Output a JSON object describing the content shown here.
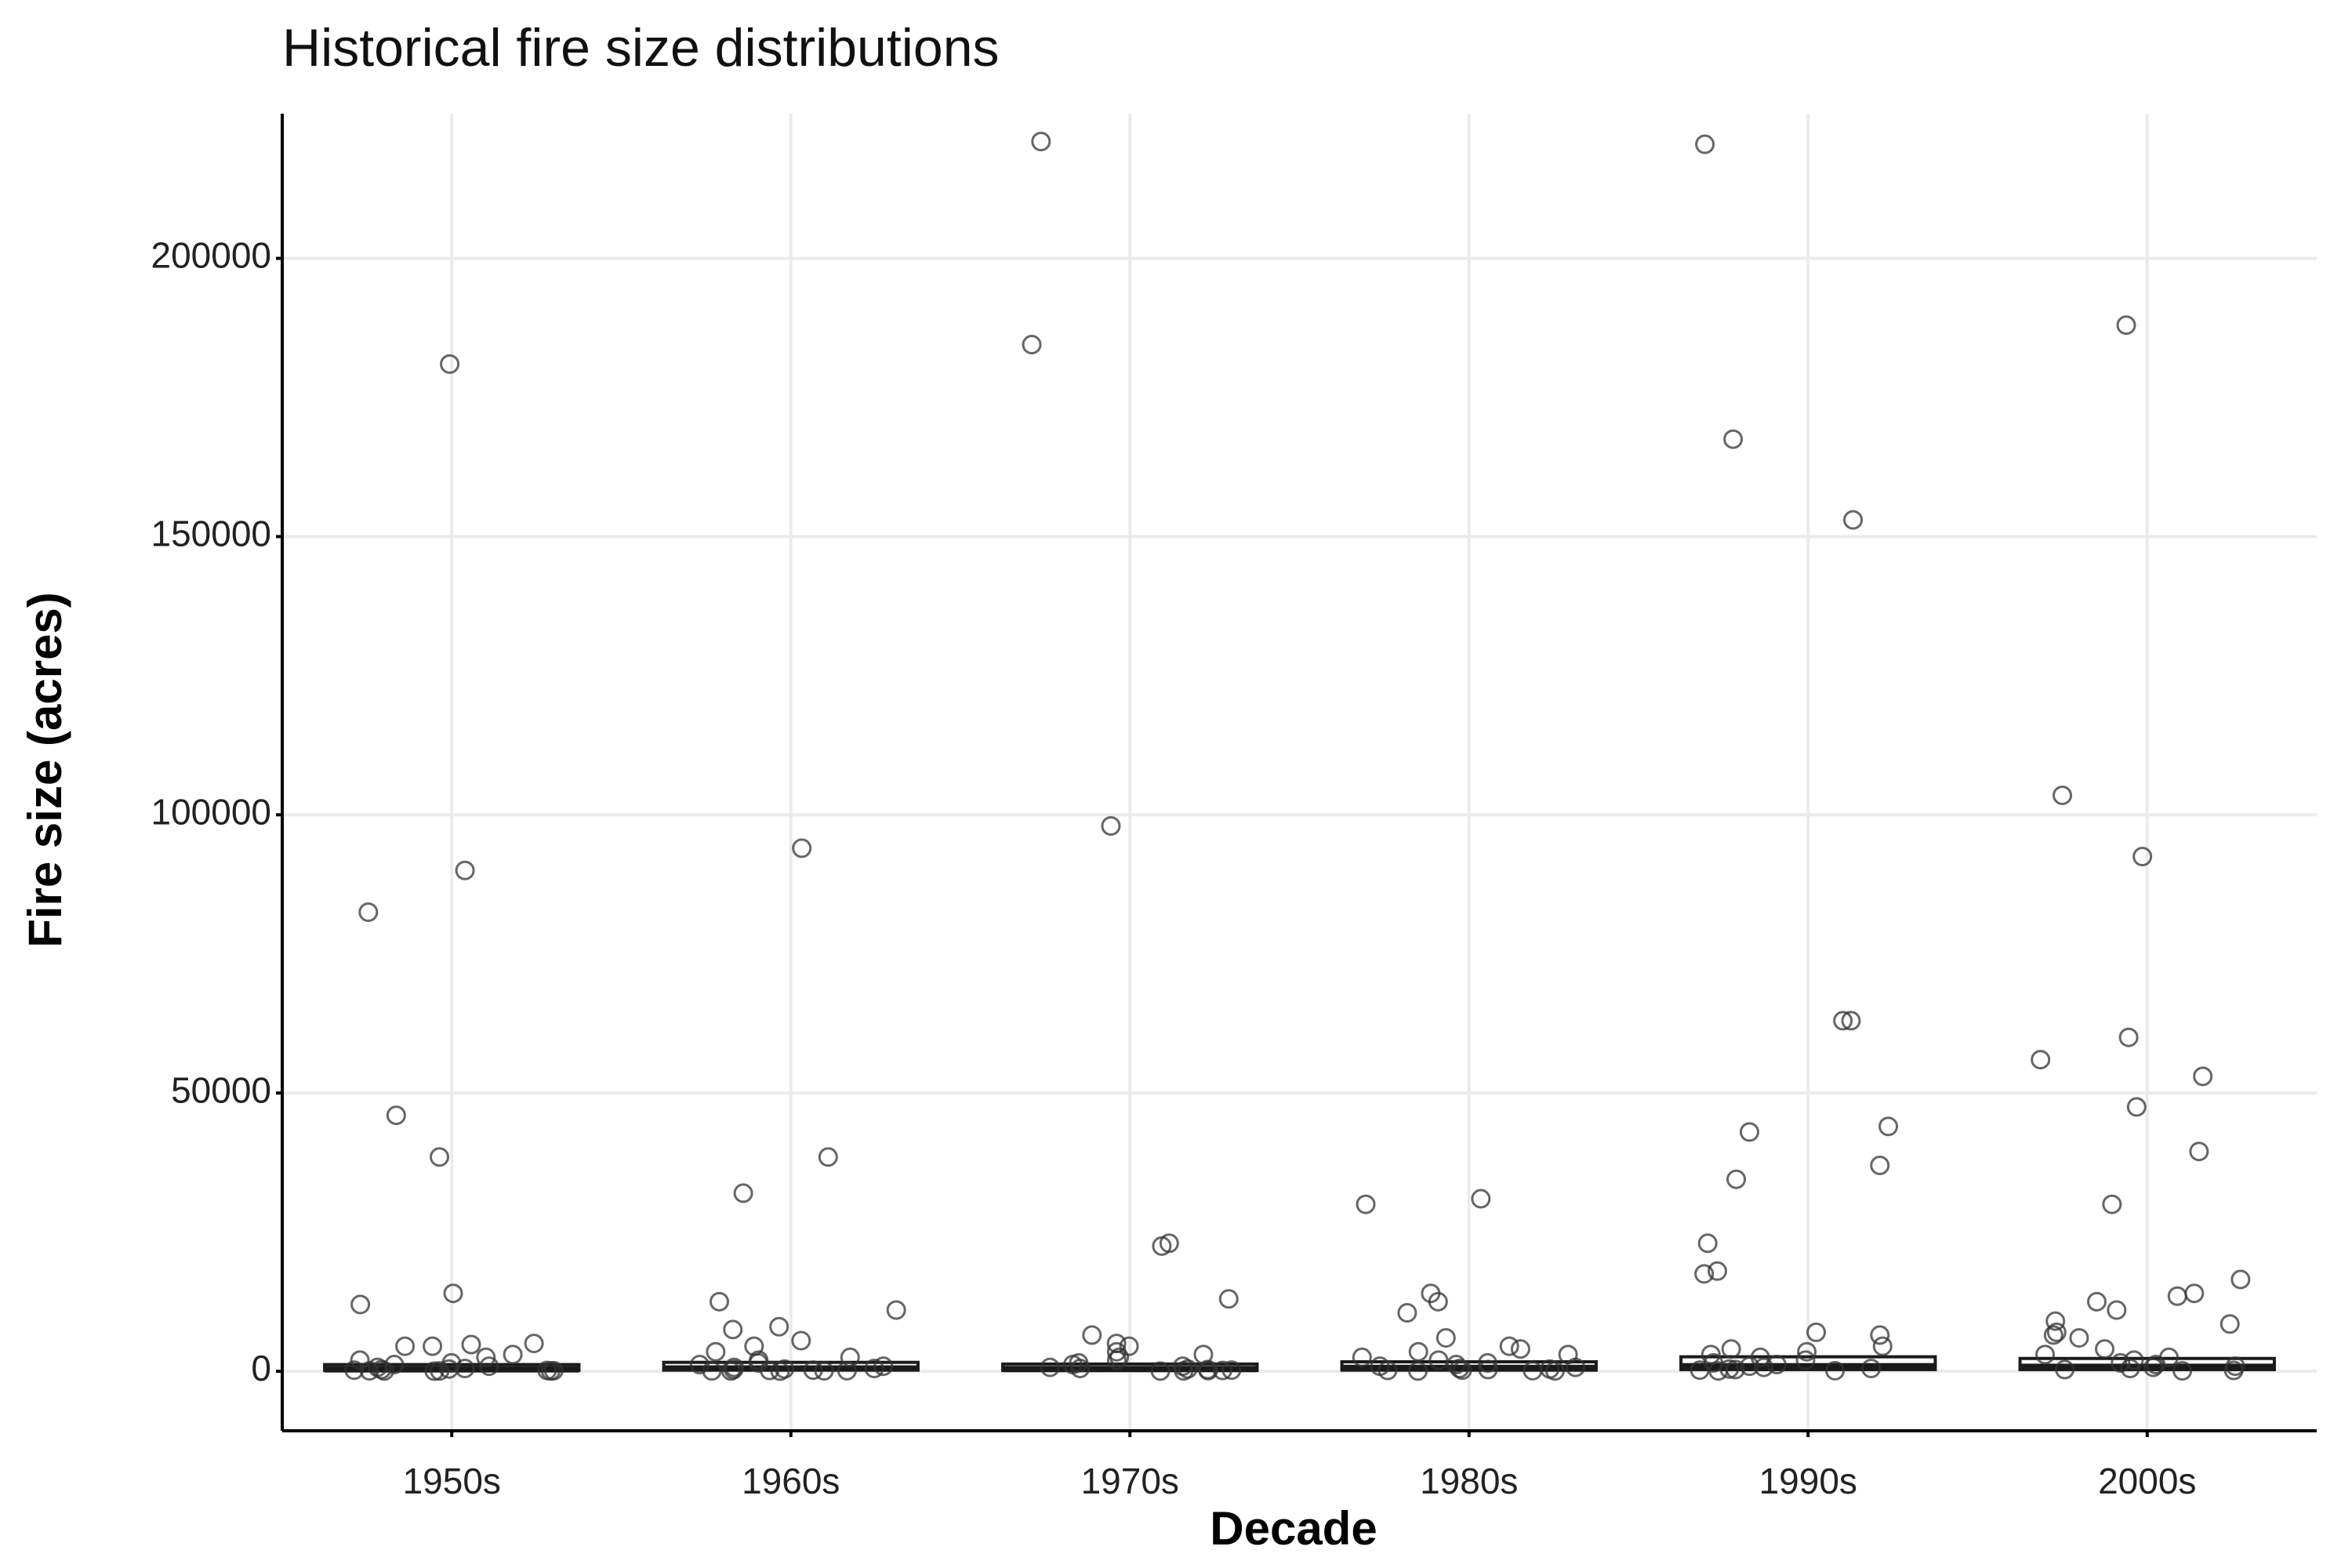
{
  "chart_data": {
    "type": "boxplot",
    "title": "Historical fire size distributions",
    "xlabel": "Decade",
    "ylabel": "Fire size (acres)",
    "ylim": [
      -10700,
      226000
    ],
    "yticks": [
      0,
      50000,
      100000,
      150000,
      200000
    ],
    "grid": true,
    "legend": "none",
    "colors": {
      "box_fill": "#ffffff",
      "box_stroke": "#1a1a1a",
      "point_stroke": "#333333",
      "grid": "#ebebeb"
    },
    "categories": [
      "1950s",
      "1960s",
      "1970s",
      "1980s",
      "1990s",
      "2000s"
    ],
    "boxes": [
      {
        "category": "1950s",
        "q1": 150,
        "median": 350,
        "q3": 1200
      },
      {
        "category": "1960s",
        "q1": 200,
        "median": 500,
        "q3": 1600
      },
      {
        "category": "1970s",
        "q1": 150,
        "median": 400,
        "q3": 1300
      },
      {
        "category": "1980s",
        "q1": 200,
        "median": 600,
        "q3": 1700
      },
      {
        "category": "1990s",
        "q1": 300,
        "median": 900,
        "q3": 2600
      },
      {
        "category": "2000s",
        "q1": 300,
        "median": 800,
        "q3": 2300
      }
    ],
    "points": [
      {
        "category": "1950s",
        "values": [
          181000,
          90000,
          82500,
          46000,
          38500,
          14000,
          12000,
          5000,
          4800,
          4500,
          4500,
          3000,
          2500,
          2000,
          1500,
          1200,
          900,
          700,
          500,
          400,
          300,
          200,
          150,
          100,
          80,
          60,
          40,
          30,
          20
        ]
      },
      {
        "category": "1960s",
        "values": [
          94000,
          38500,
          32000,
          12500,
          11000,
          8000,
          7500,
          5500,
          4500,
          3500,
          2500,
          2000,
          1500,
          1200,
          900,
          700,
          500,
          400,
          300,
          200,
          150,
          100,
          80,
          60,
          40,
          20
        ]
      },
      {
        "category": "1970s",
        "values": [
          221000,
          184500,
          98000,
          23000,
          22500,
          13000,
          6500,
          5000,
          4500,
          3500,
          3000,
          2500,
          2000,
          1500,
          1200,
          900,
          700,
          500,
          400,
          300,
          200,
          150,
          100,
          60,
          30
        ]
      },
      {
        "category": "1980s",
        "values": [
          31000,
          30000,
          14000,
          12500,
          10500,
          6000,
          4500,
          4000,
          3500,
          3000,
          2500,
          2000,
          1500,
          1200,
          900,
          700,
          500,
          400,
          300,
          200,
          150,
          100,
          60,
          30
        ]
      },
      {
        "category": "1990s",
        "values": [
          220500,
          167500,
          153000,
          63000,
          63000,
          44000,
          43000,
          37000,
          34500,
          23000,
          18000,
          17500,
          7000,
          6500,
          4500,
          4000,
          3500,
          3000,
          2500,
          2000,
          1500,
          1200,
          900,
          700,
          500,
          400,
          300,
          200,
          100,
          50
        ]
      },
      {
        "category": "2000s",
        "values": [
          188000,
          103500,
          92500,
          60000,
          56000,
          53000,
          47500,
          39500,
          30000,
          16500,
          14000,
          13500,
          12500,
          11000,
          9000,
          8500,
          7000,
          6500,
          6000,
          4000,
          3000,
          2500,
          2000,
          1500,
          1200,
          900,
          700,
          500,
          300,
          150,
          80
        ]
      }
    ]
  }
}
